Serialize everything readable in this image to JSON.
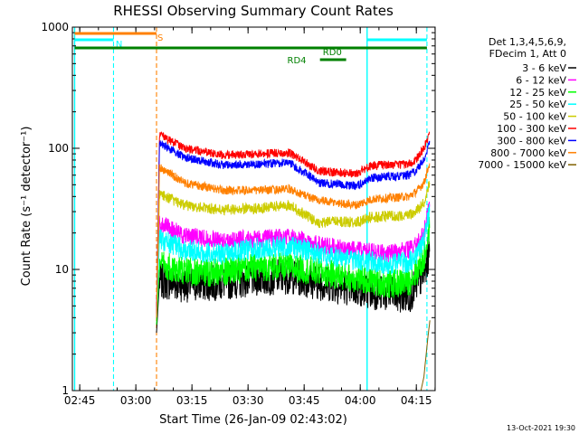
{
  "chart_data": {
    "type": "line",
    "title": "RHESSI Observing Summary Count Rates",
    "xlabel": "Start Time (26-Jan-09 02:43:02)",
    "ylabel": "Count Rate (s⁻¹ detector⁻¹)",
    "yscale": "log",
    "ylim": [
      1,
      1000
    ],
    "xlim_minutes": [
      0,
      97
    ],
    "x_ticks": [
      {
        "label": "02:45",
        "minute": 1.97
      },
      {
        "label": "03:00",
        "minute": 16.97
      },
      {
        "label": "03:15",
        "minute": 31.97
      },
      {
        "label": "03:30",
        "minute": 46.97
      },
      {
        "label": "03:45",
        "minute": 61.97
      },
      {
        "label": "04:00",
        "minute": 76.97
      },
      {
        "label": "04:15",
        "minute": 91.97
      }
    ],
    "y_ticks": [
      {
        "label": "1",
        "value": 1
      },
      {
        "label": "10",
        "value": 10
      },
      {
        "label": "100",
        "value": 100
      },
      {
        "label": "1000",
        "value": 1000
      }
    ],
    "legend_header": [
      "Det 1,3,4,5,6,9,",
      "FDecim 1, Att 0"
    ],
    "legend_position": "right",
    "series": [
      {
        "name": "3 - 6 keV",
        "color": "#000000",
        "noise": 0.05,
        "points": [
          [
            22.5,
            3.0
          ],
          [
            23.3,
            8.0
          ],
          [
            30,
            7.5
          ],
          [
            40,
            7.8
          ],
          [
            50,
            8.5
          ],
          [
            58,
            8.8
          ],
          [
            66,
            7.8
          ],
          [
            75,
            7.0
          ],
          [
            85,
            6.2
          ],
          [
            90,
            6.0
          ],
          [
            92,
            7.5
          ],
          [
            94,
            9.0
          ],
          [
            95.5,
            14.0
          ]
        ]
      },
      {
        "name": "6 - 12 keV",
        "color": "#ff00ff",
        "noise": 0.025,
        "points": [
          [
            22.5,
            4.0
          ],
          [
            23.3,
            24.0
          ],
          [
            30,
            19.0
          ],
          [
            40,
            17.5
          ],
          [
            50,
            18.0
          ],
          [
            58,
            18.5
          ],
          [
            66,
            16.0
          ],
          [
            75,
            14.5
          ],
          [
            85,
            13.5
          ],
          [
            90,
            14.5
          ],
          [
            92,
            16.0
          ],
          [
            94,
            20.0
          ],
          [
            95.5,
            33.0
          ]
        ]
      },
      {
        "name": "12 - 25 keV",
        "color": "#00ff00",
        "noise": 0.04,
        "points": [
          [
            22.5,
            3.5
          ],
          [
            23.3,
            11.0
          ],
          [
            30,
            9.5
          ],
          [
            40,
            9.5
          ],
          [
            50,
            10.5
          ],
          [
            58,
            10.5
          ],
          [
            66,
            9.5
          ],
          [
            75,
            8.5
          ],
          [
            85,
            7.5
          ],
          [
            90,
            8.0
          ],
          [
            92,
            9.5
          ],
          [
            94,
            12.0
          ],
          [
            95.5,
            22.0
          ]
        ]
      },
      {
        "name": "25 - 50 keV",
        "color": "#00ffff",
        "noise": 0.03,
        "points": [
          [
            22.5,
            4.0
          ],
          [
            23.3,
            18.0
          ],
          [
            30,
            14.5
          ],
          [
            40,
            13.5
          ],
          [
            50,
            15.0
          ],
          [
            58,
            15.5
          ],
          [
            66,
            13.5
          ],
          [
            75,
            12.0
          ],
          [
            85,
            11.0
          ],
          [
            90,
            11.5
          ],
          [
            92,
            13.0
          ],
          [
            94,
            17.0
          ],
          [
            95.5,
            30.0
          ]
        ]
      },
      {
        "name": "50 - 100 keV",
        "color": "#cccc00",
        "noise": 0.015,
        "points": [
          [
            22.5,
            4.0
          ],
          [
            23.3,
            42.0
          ],
          [
            30,
            34.0
          ],
          [
            40,
            31.0
          ],
          [
            50,
            32.0
          ],
          [
            58,
            34.0
          ],
          [
            66,
            24.0
          ],
          [
            70,
            25.0
          ],
          [
            76,
            24.5
          ],
          [
            80,
            27.0
          ],
          [
            90,
            28.0
          ],
          [
            92,
            30.0
          ],
          [
            94,
            36.0
          ],
          [
            95.5,
            52.0
          ]
        ]
      },
      {
        "name": "100 - 300 keV",
        "color": "#ff0000",
        "noise": 0.012,
        "points": [
          [
            22.5,
            4.0
          ],
          [
            23.3,
            130.0
          ],
          [
            30,
            100.0
          ],
          [
            40,
            88.0
          ],
          [
            50,
            90.0
          ],
          [
            58,
            92.0
          ],
          [
            66,
            65.0
          ],
          [
            72,
            63.0
          ],
          [
            76,
            62.0
          ],
          [
            80,
            72.0
          ],
          [
            90,
            74.0
          ],
          [
            92,
            82.0
          ],
          [
            94,
            100.0
          ],
          [
            95.5,
            135.0
          ]
        ]
      },
      {
        "name": "300 - 800 keV",
        "color": "#0000ff",
        "noise": 0.012,
        "points": [
          [
            22.5,
            4.0
          ],
          [
            23.3,
            110.0
          ],
          [
            30,
            84.0
          ],
          [
            40,
            73.0
          ],
          [
            50,
            74.0
          ],
          [
            58,
            76.0
          ],
          [
            66,
            52.0
          ],
          [
            72,
            50.0
          ],
          [
            76,
            49.0
          ],
          [
            80,
            57.0
          ],
          [
            90,
            60.0
          ],
          [
            92,
            66.0
          ],
          [
            94,
            80.0
          ],
          [
            95.5,
            115.0
          ]
        ]
      },
      {
        "name": "800 - 7000 keV",
        "color": "#ff8000",
        "noise": 0.012,
        "points": [
          [
            22.5,
            4.0
          ],
          [
            23.3,
            70.0
          ],
          [
            30,
            52.0
          ],
          [
            40,
            45.0
          ],
          [
            50,
            45.0
          ],
          [
            58,
            46.0
          ],
          [
            66,
            37.0
          ],
          [
            72,
            35.0
          ],
          [
            76,
            34.0
          ],
          [
            80,
            38.0
          ],
          [
            90,
            40.0
          ],
          [
            92,
            44.0
          ],
          [
            94,
            52.0
          ],
          [
            95.5,
            75.0
          ]
        ]
      },
      {
        "name": "7000 - 15000 keV",
        "color": "#806000",
        "noise": 0.0,
        "points": [
          [
            93.2,
            1.0
          ],
          [
            94.0,
            1.3
          ],
          [
            94.6,
            2.0
          ],
          [
            95.2,
            3.0
          ],
          [
            95.6,
            3.8
          ]
        ]
      }
    ],
    "vertical_lines": [
      {
        "minute": 0.6,
        "color": "#00ffff",
        "style": "solid"
      },
      {
        "minute": 11.0,
        "color": "#00ffff",
        "style": "dashed"
      },
      {
        "minute": 22.5,
        "color": "#ff8000",
        "style": "dashed"
      },
      {
        "minute": 78.8,
        "color": "#00ffff",
        "style": "solid"
      },
      {
        "minute": 94.8,
        "color": "#00ffff",
        "style": "dashed"
      }
    ],
    "flag_bars": [
      {
        "label": "S",
        "color": "#ff8000",
        "y": 37,
        "start_minute": 0.6,
        "end_minute": 22.5,
        "label_minute": 23.5,
        "label_y": 45
      },
      {
        "label": "N",
        "color": "#00ffff",
        "y": 44,
        "start_minute": 0.6,
        "end_minute": 11.0,
        "label_minute": 12.5,
        "label_y": 52
      },
      {
        "label": "N",
        "color": "#00ffff",
        "y": 44,
        "start_minute": 78.8,
        "end_minute": 94.8,
        "label_minute": null,
        "label_y": null
      },
      {
        "label": "RD0",
        "color": "#008000",
        "y": 53,
        "start_minute": 0.6,
        "end_minute": 94.8,
        "label_minute": 69.5,
        "label_y": 61
      },
      {
        "label": "RD4",
        "color": "#008000",
        "y": 66,
        "start_minute": 66.2,
        "end_minute": 73.2,
        "label_minute": 60.0,
        "label_y": 70
      }
    ]
  },
  "footer": {
    "timestamp": "13-Oct-2021 19:30"
  }
}
